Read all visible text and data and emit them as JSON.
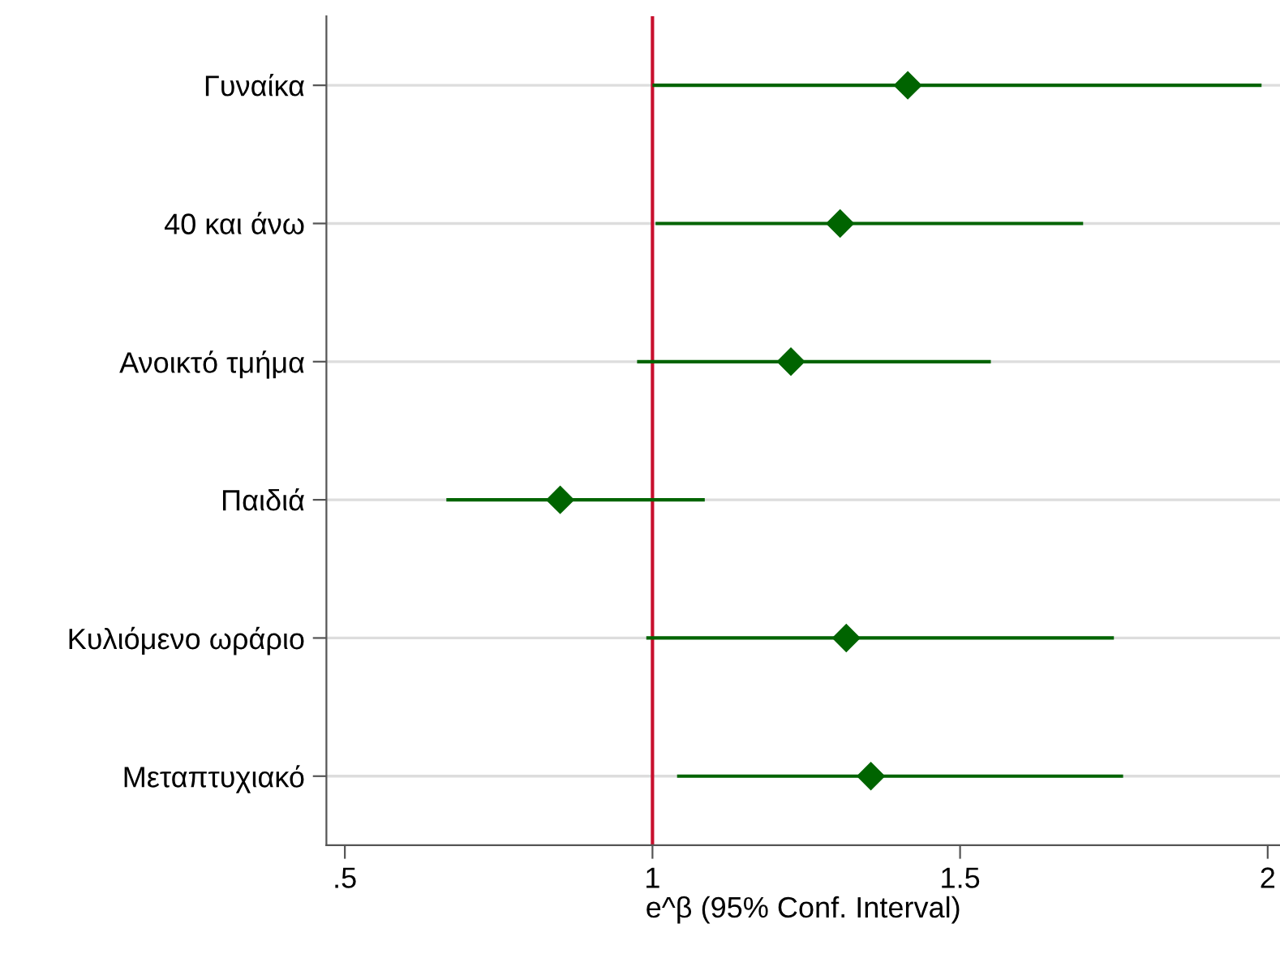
{
  "chart_data": {
    "type": "scatter",
    "orientation": "horizontal",
    "categories": [
      "Γυναίκα",
      "40 και άνω",
      "Ανοικτό τμήμα",
      "Παιδιά",
      "Κυλιόμενο ωράριο",
      "Μεταπτυχιακό"
    ],
    "values": [
      1.415,
      1.305,
      1.225,
      0.85,
      1.315,
      1.355
    ],
    "errors": [
      [
        1.0,
        1.99
      ],
      [
        1.005,
        1.7
      ],
      [
        0.975,
        1.55
      ],
      [
        0.665,
        1.085
      ],
      [
        0.99,
        1.75
      ],
      [
        1.04,
        1.765
      ]
    ],
    "color": "#006400",
    "marker": "diamond",
    "xlabel": "e^β (95% Conf. Interval)",
    "xlim": [
      0.47,
      2.02
    ],
    "xticks": [
      {
        "value": 0.5,
        "label": ".5"
      },
      1,
      1.5,
      2
    ],
    "ref_lines": [
      {
        "axis": "x",
        "value": 1,
        "color": "#c8102e"
      }
    ],
    "grid": "y",
    "legend": false
  }
}
